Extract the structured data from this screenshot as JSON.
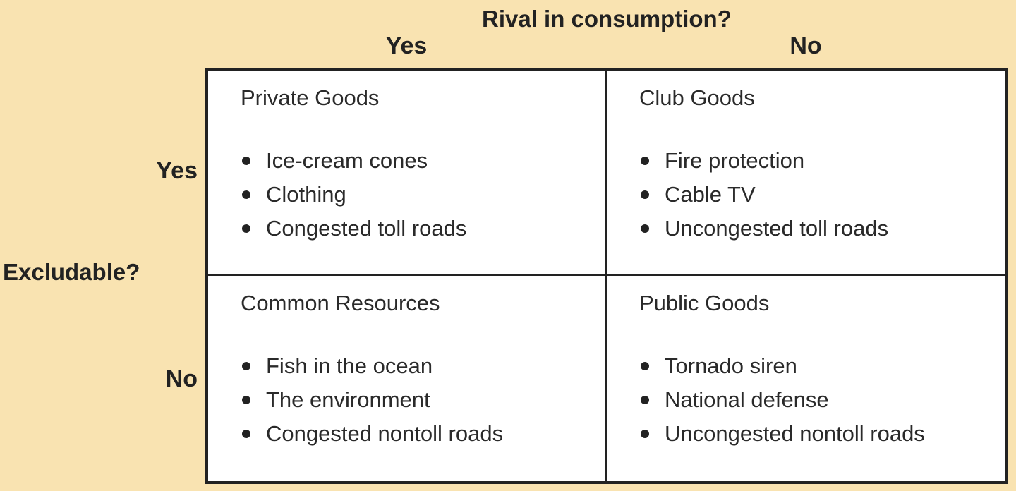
{
  "labels": {
    "rival": "Rival in consumption?",
    "excludable": "Excludable?",
    "col_yes": "Yes",
    "col_no": "No",
    "row_yes": "Yes",
    "row_no": "No"
  },
  "cells": {
    "private": {
      "title": "Private Goods",
      "items": [
        "Ice-cream cones",
        "Clothing",
        "Congested toll roads"
      ]
    },
    "club": {
      "title": "Club Goods",
      "items": [
        "Fire protection",
        "Cable TV",
        "Uncongested toll roads"
      ]
    },
    "common": {
      "title": "Common Resources",
      "items": [
        "Fish in the ocean",
        "The environment",
        "Congested nontoll roads"
      ]
    },
    "public": {
      "title": "Public Goods",
      "items": [
        "Tornado siren",
        "National defense",
        "Uncongested nontoll roads"
      ]
    }
  }
}
